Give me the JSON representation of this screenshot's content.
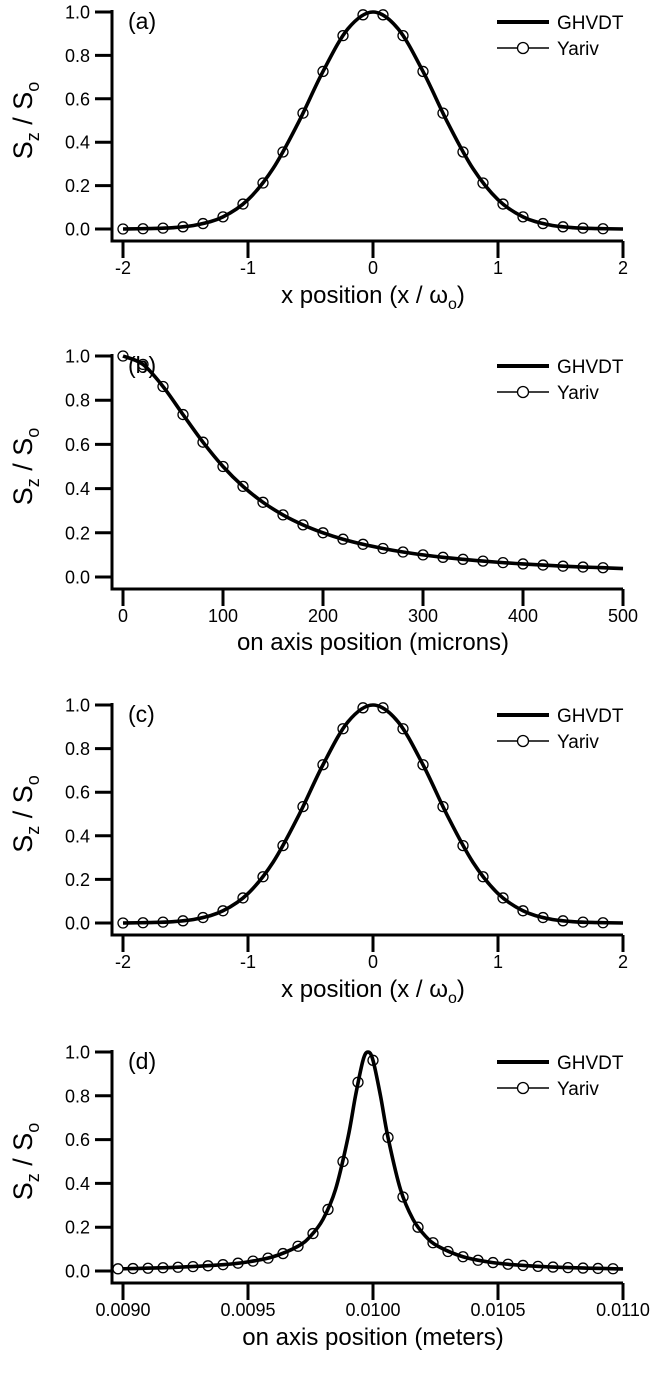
{
  "chart_data": [
    {
      "type": "line",
      "panel_label": "(a)",
      "ylabel": {
        "s": "S",
        "sub1": "z",
        "mid": " / S",
        "sub2": "o"
      },
      "xlabel": {
        "main": "x position (x / ω",
        "sub": "o",
        "tail": ")"
      },
      "xlim": [
        -2,
        2
      ],
      "ylim": [
        0,
        1
      ],
      "xticks": [
        -2,
        -1,
        0,
        1,
        2
      ],
      "xtick_labels": [
        "-2",
        "-1",
        "0",
        "1",
        "2"
      ],
      "yticks": [
        0,
        0.2,
        0.4,
        0.6,
        0.8,
        1.0
      ],
      "ytick_labels": [
        "0.0",
        "0.2",
        "0.4",
        "0.6",
        "0.8",
        "1.0"
      ],
      "legend": "top-right",
      "grid": false,
      "series": [
        {
          "name": "GHVDT",
          "style": "thick-line",
          "x": [
            -2,
            -1.8,
            -1.6,
            -1.4,
            -1.2,
            -1.0,
            -0.8,
            -0.6,
            -0.4,
            -0.2,
            0,
            0.2,
            0.4,
            0.6,
            0.8,
            1.0,
            1.2,
            1.4,
            1.6,
            1.8,
            2
          ],
          "y": [
            0,
            0.002,
            0.006,
            0.02,
            0.056,
            0.135,
            0.278,
            0.487,
            0.726,
            0.923,
            1,
            0.923,
            0.726,
            0.487,
            0.278,
            0.135,
            0.056,
            0.02,
            0.006,
            0.002,
            0
          ]
        },
        {
          "name": "Yariv",
          "style": "line-circles",
          "x": [
            -2,
            -1.84,
            -1.68,
            -1.52,
            -1.36,
            -1.2,
            -1.04,
            -0.88,
            -0.72,
            -0.56,
            -0.4,
            -0.24,
            -0.08,
            0.08,
            0.24,
            0.4,
            0.56,
            0.72,
            0.88,
            1.04,
            1.2,
            1.36,
            1.52,
            1.68,
            1.84
          ],
          "y": [
            0,
            0.001,
            0.004,
            0.01,
            0.025,
            0.056,
            0.115,
            0.212,
            0.355,
            0.534,
            0.726,
            0.891,
            0.987,
            0.987,
            0.891,
            0.726,
            0.534,
            0.355,
            0.212,
            0.115,
            0.056,
            0.025,
            0.01,
            0.004,
            0.001
          ]
        }
      ]
    },
    {
      "type": "line",
      "panel_label": "(b)",
      "ylabel": {
        "s": "S",
        "sub1": "z",
        "mid": " / S",
        "sub2": "o"
      },
      "xlabel": {
        "main": "on axis position (microns)",
        "sub": "",
        "tail": ""
      },
      "xlim": [
        0,
        500
      ],
      "ylim": [
        0,
        1
      ],
      "xticks": [
        0,
        100,
        200,
        300,
        400,
        500
      ],
      "xtick_labels": [
        "0",
        "100",
        "200",
        "300",
        "400",
        "500"
      ],
      "yticks": [
        0,
        0.2,
        0.4,
        0.6,
        0.8,
        1.0
      ],
      "ytick_labels": [
        "0.0",
        "0.2",
        "0.4",
        "0.6",
        "0.8",
        "1.0"
      ],
      "legend": "top-right",
      "grid": false,
      "series": [
        {
          "name": "GHVDT",
          "style": "thick-line",
          "x": [
            0,
            20,
            40,
            60,
            80,
            100,
            120,
            140,
            160,
            180,
            200,
            220,
            240,
            260,
            280,
            300,
            320,
            340,
            360,
            380,
            400,
            420,
            440,
            460,
            480,
            500
          ],
          "y": [
            1,
            0.962,
            0.862,
            0.735,
            0.61,
            0.5,
            0.41,
            0.338,
            0.281,
            0.236,
            0.2,
            0.171,
            0.148,
            0.129,
            0.113,
            0.1,
            0.089,
            0.08,
            0.072,
            0.065,
            0.059,
            0.054,
            0.049,
            0.045,
            0.042,
            0.038
          ]
        },
        {
          "name": "Yariv",
          "style": "line-circles",
          "x": [
            0,
            20,
            40,
            60,
            80,
            100,
            120,
            140,
            160,
            180,
            200,
            220,
            240,
            260,
            280,
            300,
            320,
            340,
            360,
            380,
            400,
            420,
            440,
            460,
            480
          ],
          "y": [
            1,
            0.962,
            0.862,
            0.735,
            0.61,
            0.5,
            0.41,
            0.338,
            0.281,
            0.236,
            0.2,
            0.171,
            0.148,
            0.129,
            0.113,
            0.1,
            0.089,
            0.08,
            0.072,
            0.065,
            0.059,
            0.054,
            0.049,
            0.045,
            0.042
          ]
        }
      ]
    },
    {
      "type": "line",
      "panel_label": "(c)",
      "ylabel": {
        "s": "S",
        "sub1": "z",
        "mid": " / S",
        "sub2": "o"
      },
      "xlabel": {
        "main": "x position (x / ω",
        "sub": "o",
        "tail": ")"
      },
      "xlim": [
        -2,
        2
      ],
      "ylim": [
        0,
        1
      ],
      "xticks": [
        -2,
        -1,
        0,
        1,
        2
      ],
      "xtick_labels": [
        "-2",
        "-1",
        "0",
        "1",
        "2"
      ],
      "yticks": [
        0,
        0.2,
        0.4,
        0.6,
        0.8,
        1.0
      ],
      "ytick_labels": [
        "0.0",
        "0.2",
        "0.4",
        "0.6",
        "0.8",
        "1.0"
      ],
      "legend": "top-right",
      "grid": false,
      "series": [
        {
          "name": "GHVDT",
          "style": "thick-line",
          "x": [
            -2,
            -1.8,
            -1.6,
            -1.4,
            -1.2,
            -1.0,
            -0.8,
            -0.6,
            -0.4,
            -0.2,
            0,
            0.2,
            0.4,
            0.6,
            0.8,
            1.0,
            1.2,
            1.4,
            1.6,
            1.8,
            2
          ],
          "y": [
            0,
            0.002,
            0.006,
            0.02,
            0.056,
            0.135,
            0.278,
            0.487,
            0.726,
            0.923,
            1,
            0.923,
            0.726,
            0.487,
            0.278,
            0.135,
            0.056,
            0.02,
            0.006,
            0.002,
            0
          ]
        },
        {
          "name": "Yariv",
          "style": "line-circles",
          "x": [
            -2,
            -1.84,
            -1.68,
            -1.52,
            -1.36,
            -1.2,
            -1.04,
            -0.88,
            -0.72,
            -0.56,
            -0.4,
            -0.24,
            -0.08,
            0.08,
            0.24,
            0.4,
            0.56,
            0.72,
            0.88,
            1.04,
            1.2,
            1.36,
            1.52,
            1.68,
            1.84
          ],
          "y": [
            0,
            0.001,
            0.004,
            0.01,
            0.025,
            0.056,
            0.115,
            0.212,
            0.355,
            0.534,
            0.726,
            0.891,
            0.987,
            0.987,
            0.891,
            0.726,
            0.534,
            0.355,
            0.212,
            0.115,
            0.056,
            0.025,
            0.01,
            0.004,
            0.001
          ]
        }
      ]
    },
    {
      "type": "line",
      "panel_label": "(d)",
      "ylabel": {
        "s": "S",
        "sub1": "z",
        "mid": " / S",
        "sub2": "o"
      },
      "xlabel": {
        "main": "on axis position (meters)",
        "sub": "",
        "tail": ""
      },
      "xlim": [
        0.009,
        0.011
      ],
      "ylim": [
        0,
        1
      ],
      "xticks": [
        0.009,
        0.0095,
        0.01,
        0.0105,
        0.011
      ],
      "xtick_labels": [
        "0.0090",
        "0.0095",
        "0.0100",
        "0.0105",
        "0.0110"
      ],
      "yticks": [
        0,
        0.2,
        0.4,
        0.6,
        0.8,
        1.0
      ],
      "ytick_labels": [
        "0.0",
        "0.2",
        "0.4",
        "0.6",
        "0.8",
        "1.0"
      ],
      "legend": "top-right",
      "grid": false,
      "series": [
        {
          "name": "GHVDT",
          "style": "thick-line",
          "x": [
            0.009,
            0.0092,
            0.0094,
            0.0095,
            0.0096,
            0.0097,
            0.00975,
            0.0098,
            0.00985,
            0.0099,
            0.00993,
            0.00996,
            0.00998,
            0.01,
            0.01003,
            0.01006,
            0.01011,
            0.01016,
            0.01021,
            0.01026,
            0.01036,
            0.01046,
            0.01056,
            0.01076,
            0.011
          ],
          "y": [
            0.0103,
            0.0162,
            0.0289,
            0.0416,
            0.065,
            0.113,
            0.159,
            0.236,
            0.372,
            0.61,
            0.8,
            0.962,
            1,
            0.962,
            0.8,
            0.61,
            0.372,
            0.236,
            0.159,
            0.113,
            0.065,
            0.0416,
            0.0289,
            0.0162,
            0.0095
          ]
        },
        {
          "name": "Yariv",
          "style": "line-circles",
          "x": [
            0.00898,
            0.00904,
            0.0091,
            0.00916,
            0.00922,
            0.00928,
            0.00934,
            0.0094,
            0.00946,
            0.00952,
            0.00958,
            0.00964,
            0.0097,
            0.00976,
            0.00982,
            0.00988,
            0.00994,
            0.01,
            0.01006,
            0.01012,
            0.01018,
            0.01024,
            0.0103,
            0.01036,
            0.01042,
            0.01048,
            0.01054,
            0.0106,
            0.01066,
            0.01072,
            0.01078,
            0.01084,
            0.0109,
            0.01096
          ],
          "y": [
            0.0099,
            0.0112,
            0.0127,
            0.0147,
            0.017,
            0.02,
            0.0238,
            0.0289,
            0.0357,
            0.0451,
            0.0588,
            0.0796,
            0.113,
            0.171,
            0.281,
            0.5,
            0.862,
            0.962,
            0.61,
            0.338,
            0.2,
            0.129,
            0.089,
            0.065,
            0.049,
            0.0385,
            0.0309,
            0.0254,
            0.0212,
            0.0179,
            0.0154,
            0.0133,
            0.0117,
            0.0103
          ]
        }
      ]
    }
  ],
  "colors": {
    "line": "#000000",
    "background": "#ffffff"
  }
}
